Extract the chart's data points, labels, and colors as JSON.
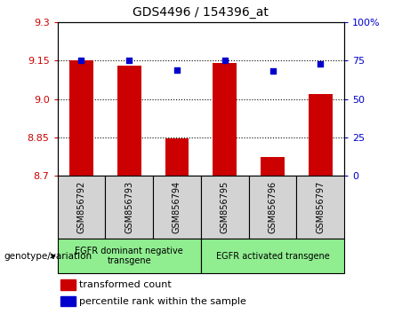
{
  "title": "GDS4496 / 154396_at",
  "samples": [
    "GSM856792",
    "GSM856793",
    "GSM856794",
    "GSM856795",
    "GSM856796",
    "GSM856797"
  ],
  "bar_values": [
    9.15,
    9.13,
    8.845,
    9.14,
    8.775,
    9.02
  ],
  "dot_values": [
    75,
    75,
    69,
    75,
    68,
    73
  ],
  "bar_color": "#cc0000",
  "dot_color": "#0000cc",
  "ylim_left": [
    8.7,
    9.3
  ],
  "ylim_right": [
    0,
    100
  ],
  "yticks_left": [
    8.7,
    8.85,
    9.0,
    9.15,
    9.3
  ],
  "yticks_right": [
    0,
    25,
    50,
    75,
    100
  ],
  "grid_values": [
    8.85,
    9.0,
    9.15
  ],
  "groups": [
    {
      "label": "EGFR dominant negative\ntransgene",
      "start": 0,
      "end": 3,
      "color": "#90ee90"
    },
    {
      "label": "EGFR activated transgene",
      "start": 3,
      "end": 6,
      "color": "#90ee90"
    }
  ],
  "legend_items": [
    {
      "color": "#cc0000",
      "label": "transformed count"
    },
    {
      "color": "#0000cc",
      "label": "percentile rank within the sample"
    }
  ],
  "xlabel_left": "genotype/variation",
  "bar_bottom": 8.7,
  "figsize": [
    4.61,
    3.54
  ],
  "dpi": 100
}
